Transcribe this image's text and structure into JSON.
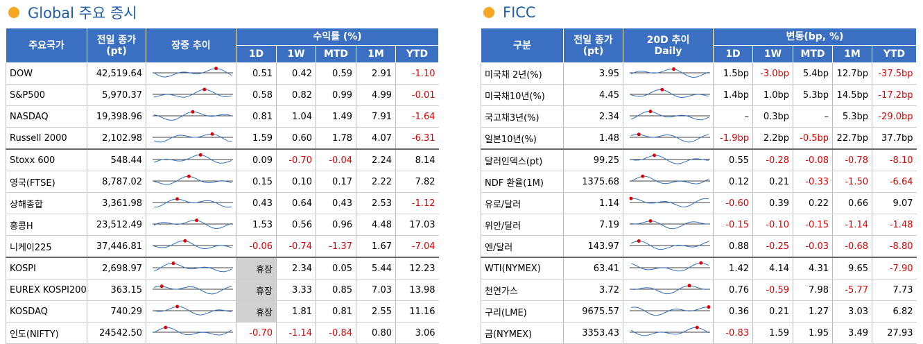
{
  "left": {
    "title": "Global 주요 증시",
    "headers": {
      "name": "주요국가",
      "prev": "전일 종가",
      "prev_unit": "(pt)",
      "trend": "장중 추이",
      "returns": "수익률 (%)",
      "periods": [
        "1D",
        "1W",
        "MTD",
        "1M",
        "YTD"
      ]
    },
    "groups": [
      {
        "rows": [
          [
            "DOW",
            "42,519.64",
            "0.51",
            "0.42",
            "0.59",
            "2.91",
            "-1.10"
          ],
          [
            "S&P500",
            "5,970.37",
            "0.58",
            "0.82",
            "0.99",
            "4.99",
            "-0.01"
          ],
          [
            "NASDAQ",
            "19,398.96",
            "0.81",
            "1.04",
            "1.49",
            "7.91",
            "-1.64"
          ],
          [
            "Russell 2000",
            "2,102.98",
            "1.59",
            "0.60",
            "1.78",
            "4.07",
            "-6.31"
          ]
        ]
      },
      {
        "rows": [
          [
            "Stoxx 600",
            "548.44",
            "0.09",
            "-0.70",
            "-0.04",
            "2.24",
            "8.14"
          ],
          [
            "영국(FTSE)",
            "8,787.02",
            "0.15",
            "0.10",
            "0.17",
            "2.22",
            "7.82"
          ],
          [
            "상해종합",
            "3,361.98",
            "0.43",
            "0.64",
            "0.43",
            "2.53",
            "-1.12"
          ],
          [
            "홍콩H",
            "23,512.49",
            "1.53",
            "0.56",
            "0.96",
            "4.48",
            "17.03"
          ],
          [
            "니케이225",
            "37,446.81",
            "-0.06",
            "-0.74",
            "-1.37",
            "1.67",
            "-7.04"
          ]
        ]
      },
      {
        "rows": [
          [
            "KOSPI",
            "2,698.97",
            "휴장",
            "2.34",
            "0.05",
            "5.44",
            "12.23"
          ],
          [
            "EUREX KOSPI200",
            "363.15",
            "휴장",
            "3.33",
            "0.85",
            "7.03",
            "13.98"
          ],
          [
            "KOSDAQ",
            "740.29",
            "휴장",
            "1.81",
            "0.81",
            "2.55",
            "11.16"
          ],
          [
            "인도(NIFTY)",
            "24542.50",
            "-0.70",
            "-1.14",
            "-0.84",
            "0.80",
            "3.06"
          ]
        ]
      }
    ]
  },
  "right": {
    "title": "FICC",
    "headers": {
      "name": "구분",
      "prev": "전일 종가",
      "prev_unit": "(pt)",
      "trend": "20D 추이",
      "trend_sub": "Daily",
      "returns": "변동(bp, %)",
      "periods": [
        "1D",
        "1W",
        "MTD",
        "1M",
        "YTD"
      ]
    },
    "groups": [
      {
        "rows": [
          [
            "미국채 2년(%)",
            "3.95",
            "1.5bp",
            "-3.0bp",
            "5.4bp",
            "12.7bp",
            "-37.5bp"
          ],
          [
            "미국채10년(%)",
            "4.45",
            "1.4bp",
            "1.0bp",
            "5.3bp",
            "14.5bp",
            "-17.2bp"
          ],
          [
            "국고채3년(%)",
            "2.34",
            "–",
            "0.3bp",
            "–",
            "5.3bp",
            "-29.0bp"
          ],
          [
            "일본10년(%)",
            "1.48",
            "-1.9bp",
            "2.2bp",
            "-0.5bp",
            "22.7bp",
            "37.7bp"
          ]
        ]
      },
      {
        "rows": [
          [
            "달러인덱스(pt)",
            "99.25",
            "0.55",
            "-0.28",
            "-0.08",
            "-0.78",
            "-8.10"
          ],
          [
            "NDF 환율(1M)",
            "1375.68",
            "0.12",
            "0.21",
            "-0.33",
            "-1.50",
            "-6.64"
          ],
          [
            "유로/달러",
            "1.14",
            "-0.60",
            "0.39",
            "0.22",
            "0.66",
            "9.07"
          ],
          [
            "위안/달러",
            "7.19",
            "-0.15",
            "-0.10",
            "-0.15",
            "-1.14",
            "-1.48"
          ],
          [
            "엔/달러",
            "143.97",
            "0.88",
            "-0.25",
            "-0.03",
            "-0.68",
            "-8.80"
          ]
        ]
      },
      {
        "rows": [
          [
            "WTI(NYMEX)",
            "63.41",
            "1.42",
            "4.14",
            "4.31",
            "9.65",
            "-7.90"
          ],
          [
            "천연가스",
            "3.72",
            "0.76",
            "-0.59",
            "7.98",
            "-5.77",
            "7.73"
          ],
          [
            "구리(LME)",
            "9675.57",
            "0.36",
            "0.21",
            "1.27",
            "3.03",
            "6.82"
          ],
          [
            "금(NYMEX)",
            "3353.43",
            "-0.83",
            "1.59",
            "1.95",
            "3.49",
            "27.93"
          ]
        ]
      }
    ]
  }
}
